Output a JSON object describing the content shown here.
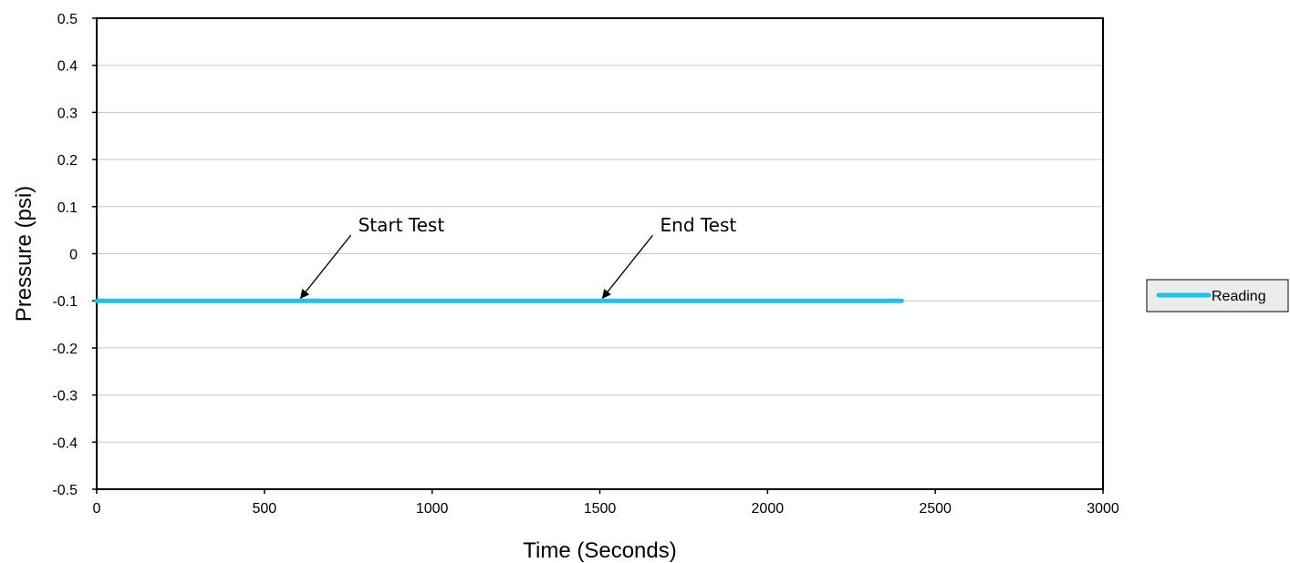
{
  "chart_data": {
    "type": "line",
    "xlabel": "Time (Seconds)",
    "ylabel": "Pressure (psi)",
    "xlim": [
      0,
      3000
    ],
    "ylim": [
      -0.5,
      0.5
    ],
    "xticks": [
      "0",
      "500",
      "1000",
      "1500",
      "2000",
      "2500",
      "3000"
    ],
    "yticks": [
      "0.5",
      "0.4",
      "0.3",
      "0.2",
      "0.1",
      "0",
      "-0.1",
      "-0.2",
      "-0.3",
      "-0.4",
      "-0.5"
    ],
    "grid": "horizontal",
    "legend_position": "right",
    "series": [
      {
        "name": "Reading",
        "color": "#19C3EC",
        "x": [
          0,
          600,
          1500,
          2400
        ],
        "y": [
          -0.1,
          -0.1,
          -0.1,
          -0.1
        ]
      }
    ],
    "annotations": [
      {
        "text": "Start Test",
        "x": 600,
        "y": -0.1
      },
      {
        "text": "End Test",
        "x": 1500,
        "y": -0.1
      }
    ]
  }
}
